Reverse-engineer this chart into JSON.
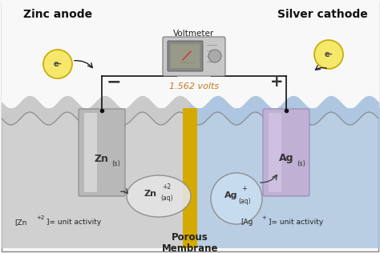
{
  "bg_color": "#f0f0f0",
  "left_solution_color": "#c8c8c8",
  "right_solution_color": "#adc4df",
  "zn_electrode_color": "#b8b8b8",
  "ag_electrode_color": "#c0b0d4",
  "membrane_color": "#d4aa00",
  "wire_color": "#111111",
  "electron_circle_fill": "#f5e86a",
  "electron_circle_edge": "#c8a800",
  "text_volts_color": "#c87820",
  "text_main_color": "#111111",
  "label_zn_anode": "Zinc anode",
  "label_ag_cathode": "Silver cathode",
  "label_voltmeter": "Voltmeter",
  "label_volts": "1.562 volts",
  "label_porous": "Porous",
  "label_membrane": "Membrane",
  "label_eminus": "e-",
  "label_minus": "−",
  "label_plus": "+"
}
